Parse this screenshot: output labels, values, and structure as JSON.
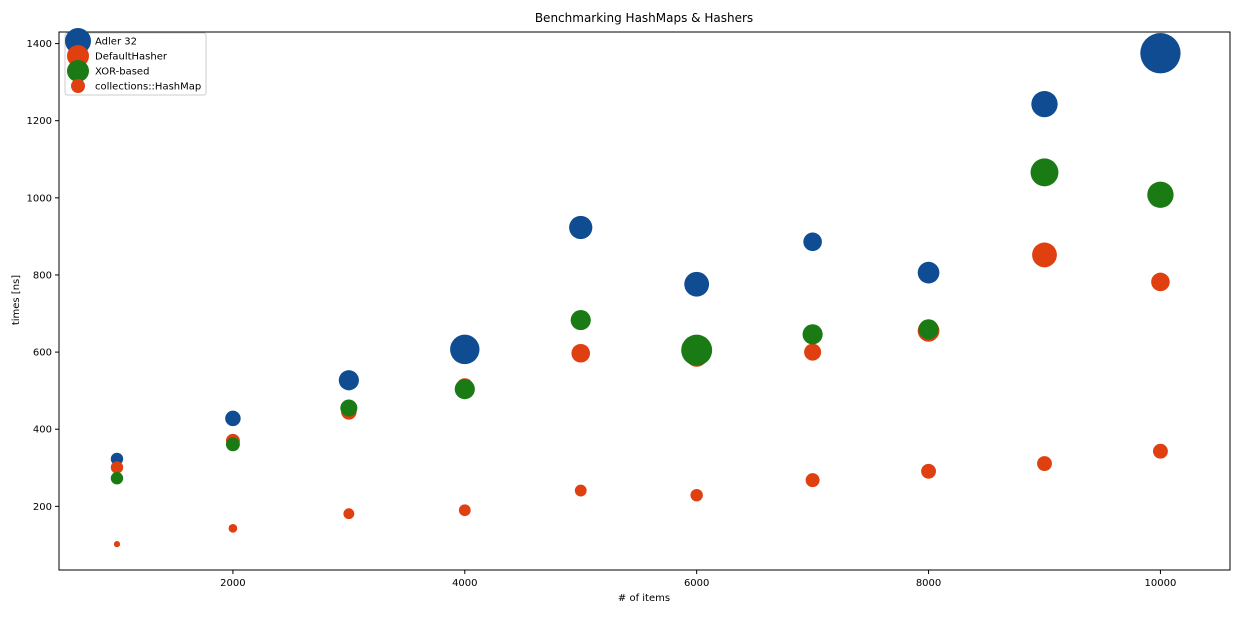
{
  "chart_data": {
    "type": "scatter",
    "title": "Benchmarking HashMaps & Hashers",
    "xlabel": "# of items",
    "ylabel": "times [ns]",
    "xlim": [
      500,
      10600
    ],
    "ylim": [
      35,
      1430
    ],
    "x_ticks": [
      2000,
      4000,
      6000,
      8000,
      10000
    ],
    "y_ticks": [
      200,
      400,
      600,
      800,
      1000,
      1200,
      1400
    ],
    "legend_position": "top-left",
    "grid": false,
    "marker_size_scale": "variable (bubble size differs per point)",
    "x": [
      1000,
      2000,
      3000,
      4000,
      5000,
      6000,
      7000,
      8000,
      9000,
      10000
    ],
    "series": [
      {
        "name": "Adler 32",
        "color": "#0f4c92",
        "values": [
          323,
          428,
          527,
          607,
          923,
          776,
          886,
          806,
          1243,
          1375
        ],
        "relative_sizes": [
          4,
          5,
          6.5,
          9.5,
          7.5,
          8,
          6,
          7,
          8.5,
          13
        ]
      },
      {
        "name": "DefaultHasher",
        "color": "#e03f10",
        "values": [
          301,
          370,
          445,
          510,
          597,
          590,
          600,
          655,
          852,
          782
        ],
        "relative_sizes": [
          4,
          4.5,
          5,
          5.5,
          6,
          7,
          5.5,
          7,
          8,
          6
        ]
      },
      {
        "name": "XOR-based",
        "color": "#1a7a14",
        "values": [
          273,
          361,
          455,
          504,
          683,
          605,
          646,
          659,
          1066,
          1008
        ],
        "relative_sizes": [
          4,
          4.5,
          5.5,
          6.5,
          6.5,
          10,
          6.5,
          6.5,
          9,
          8.5
        ]
      },
      {
        "name": "collections::HashMap",
        "color": "#e03f10",
        "values": [
          102,
          143,
          181,
          190,
          241,
          229,
          268,
          291,
          311,
          343
        ],
        "relative_sizes": [
          2,
          2.8,
          3.5,
          3.8,
          3.8,
          4,
          4.5,
          4.8,
          4.8,
          4.8
        ]
      }
    ]
  }
}
